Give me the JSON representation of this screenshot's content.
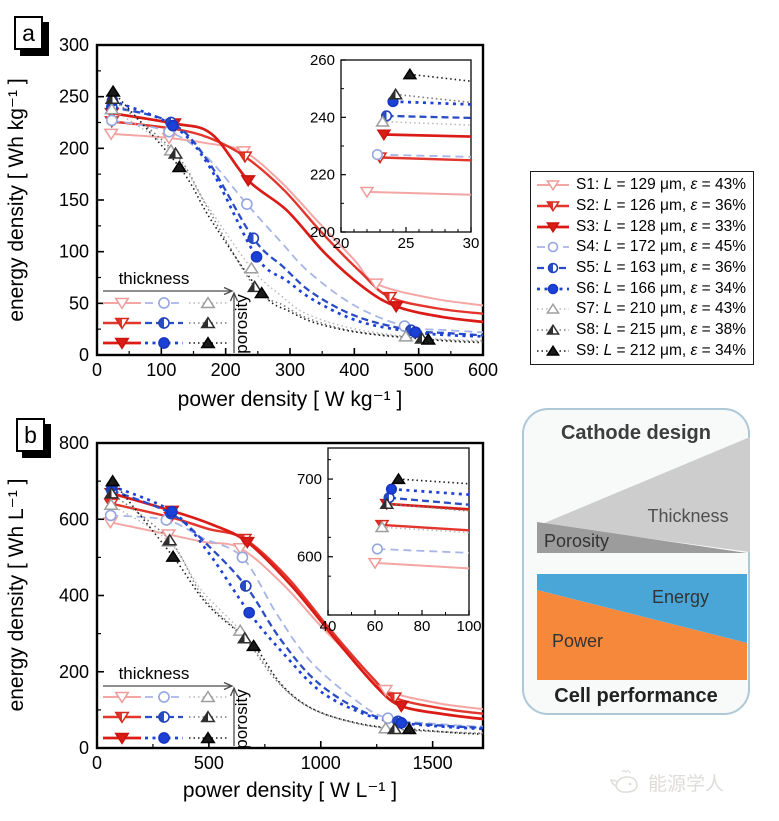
{
  "panels": {
    "a": "a",
    "b": "b"
  },
  "legend": {
    "items": [
      {
        "name": "S1",
        "label": "S1: L = 129 μm, ε = 43%",
        "family": "red",
        "color": "#F4A6A4",
        "mcolor": "#EF9B99",
        "dash": "",
        "width": 2.0,
        "marker": "tri-down",
        "fill": "open"
      },
      {
        "name": "S2",
        "label": "S2: L = 126 μm, ε = 36%",
        "family": "red",
        "color": "#E2352C",
        "mcolor": "#D62920",
        "dash": "",
        "width": 2.4,
        "marker": "tri-down",
        "fill": "half"
      },
      {
        "name": "S3",
        "label": "S3: L = 128 μm, ε = 33%",
        "family": "red",
        "color": "#DB1B15",
        "mcolor": "#C9140F",
        "dash": "",
        "width": 2.7,
        "marker": "tri-down",
        "fill": "full"
      },
      {
        "name": "S4",
        "label": "S4: L = 172 μm, ε = 45%",
        "family": "blue",
        "color": "#A7B5E6",
        "mcolor": "#96A7E0",
        "dash": "8 5",
        "width": 1.8,
        "marker": "circle",
        "fill": "open"
      },
      {
        "name": "S5",
        "label": "S5: L = 163 μm, ε = 36%",
        "family": "blue",
        "color": "#2A4CC6",
        "mcolor": "#2343BC",
        "dash": "7 4",
        "width": 2.3,
        "marker": "circle",
        "fill": "half"
      },
      {
        "name": "S6",
        "label": "S6: L = 166 μm, ε = 34%",
        "family": "blue",
        "color": "#1C41D6",
        "mcolor": "#1636C2",
        "dash": "3 4.5",
        "width": 2.7,
        "marker": "circle",
        "fill": "full"
      },
      {
        "name": "S7",
        "label": "S7: L = 210 μm, ε = 43%",
        "family": "gray",
        "color": "#B9B9B9",
        "mcolor": "#9E9E9E",
        "dash": "1.5 3",
        "width": 1.5,
        "marker": "tri-up",
        "fill": "open"
      },
      {
        "name": "S8",
        "label": "S8: L = 215 μm, ε = 38%",
        "family": "gray",
        "color": "#7A7A7A",
        "mcolor": "#2E2E2E",
        "dash": "1.5 3",
        "width": 1.6,
        "marker": "tri-up",
        "fill": "half"
      },
      {
        "name": "S9",
        "label": "S9: L = 212 μm, ε = 34%",
        "family": "gray",
        "color": "#1A1A1A",
        "mcolor": "#000000",
        "dash": "1.5 3",
        "width": 1.6,
        "marker": "tri-up",
        "fill": "full"
      }
    ]
  },
  "chart_data": [
    {
      "type": "line",
      "title": "",
      "xlabel": "power density [ W kg⁻¹ ]",
      "ylabel": "energy density [ Wh kg⁻¹ ]",
      "xlim": [
        0,
        600
      ],
      "ylim": [
        0,
        300
      ],
      "xticks": [
        0,
        100,
        200,
        300,
        400,
        500,
        600
      ],
      "yticks": [
        0,
        50,
        100,
        150,
        200,
        250,
        300
      ],
      "xminor": 50,
      "yminor": 25,
      "grid": false,
      "annotation": {
        "thickness": "thickness",
        "porosity": "porosity"
      },
      "series": [
        {
          "name": "S1",
          "marker_at": [
            0,
            1,
            3,
            7
          ],
          "x": [
            22,
            112,
            170,
            228,
            285,
            345,
            400,
            434,
            520,
            600
          ],
          "y": [
            214,
            210,
            205,
            197,
            168,
            128,
            92,
            69,
            55,
            48
          ]
        },
        {
          "name": "S2",
          "marker_at": [
            0,
            1,
            3,
            7
          ],
          "x": [
            23,
            118,
            175,
            230,
            290,
            350,
            410,
            455,
            530,
            600
          ],
          "y": [
            226,
            219,
            210,
            192,
            160,
            118,
            80,
            56,
            45,
            40
          ]
        },
        {
          "name": "S3",
          "marker_at": [
            0,
            1,
            3,
            7
          ],
          "x": [
            23,
            120,
            178,
            235,
            295,
            355,
            415,
            465,
            535,
            600
          ],
          "y": [
            234,
            224,
            214,
            169,
            140,
            98,
            65,
            47,
            37,
            32
          ]
        },
        {
          "name": "S4",
          "marker_at": [
            0,
            1,
            3,
            7
          ],
          "x": [
            23,
            112,
            170,
            233,
            285,
            330,
            400,
            478,
            545,
            600
          ],
          "y": [
            227,
            216,
            192,
            146,
            110,
            80,
            48,
            28,
            24,
            22
          ]
        },
        {
          "name": "S5",
          "marker_at": [
            0,
            1,
            3,
            7
          ],
          "x": [
            23,
            115,
            172,
            243,
            290,
            335,
            405,
            488,
            550,
            600
          ],
          "y": [
            240,
            225,
            188,
            113,
            85,
            60,
            37,
            24,
            21,
            19
          ]
        },
        {
          "name": "S6",
          "marker_at": [
            0,
            1,
            3,
            7
          ],
          "x": [
            24,
            118,
            175,
            248,
            295,
            340,
            410,
            495,
            555,
            600
          ],
          "y": [
            246,
            222,
            182,
            95,
            72,
            52,
            32,
            22,
            19,
            18
          ]
        },
        {
          "name": "S7",
          "marker_at": [
            0,
            1,
            3,
            7
          ],
          "x": [
            23,
            115,
            168,
            240,
            285,
            325,
            395,
            480,
            545,
            600
          ],
          "y": [
            238,
            198,
            148,
            84,
            58,
            40,
            26,
            18,
            15,
            14
          ]
        },
        {
          "name": "S8",
          "marker_at": [
            0,
            1,
            3,
            7
          ],
          "x": [
            24,
            122,
            172,
            245,
            290,
            330,
            400,
            505,
            555,
            600
          ],
          "y": [
            248,
            195,
            142,
            66,
            48,
            35,
            23,
            16,
            14,
            13
          ]
        },
        {
          "name": "S9",
          "marker_at": [
            0,
            1,
            3,
            7
          ],
          "x": [
            25,
            128,
            178,
            256,
            300,
            345,
            415,
            515,
            560,
            600
          ],
          "y": [
            255,
            182,
            130,
            60,
            42,
            30,
            21,
            15,
            13,
            12
          ]
        }
      ],
      "inset": {
        "xlim": [
          20,
          30
        ],
        "ylim": [
          200,
          260
        ],
        "xticks": [
          20,
          25,
          30
        ],
        "yticks": [
          200,
          220,
          240,
          260
        ],
        "xminor": 1,
        "yminor": 10,
        "series": [
          {
            "name": "S1",
            "x": [
              22,
              30
            ],
            "y": [
              214,
              213
            ]
          },
          {
            "name": "S2",
            "x": [
              23,
              30
            ],
            "y": [
              226,
              225
            ]
          },
          {
            "name": "S3",
            "x": [
              23.3,
              30
            ],
            "y": [
              234,
              233.3
            ]
          },
          {
            "name": "S4",
            "x": [
              22.8,
              30
            ],
            "y": [
              227,
              226.2
            ]
          },
          {
            "name": "S5",
            "x": [
              23.5,
              30
            ],
            "y": [
              240.5,
              239.8
            ]
          },
          {
            "name": "S6",
            "x": [
              24,
              30
            ],
            "y": [
              245.5,
              244.5
            ]
          },
          {
            "name": "S7",
            "x": [
              23.2,
              30
            ],
            "y": [
              238.5,
              237.3
            ]
          },
          {
            "name": "S8",
            "x": [
              24.2,
              30
            ],
            "y": [
              248,
              245.2
            ]
          },
          {
            "name": "S9",
            "x": [
              25.3,
              30
            ],
            "y": [
              255,
              252.6
            ]
          }
        ]
      }
    },
    {
      "type": "line",
      "title": "",
      "xlabel": "power density [ W L⁻¹ ]",
      "ylabel": "energy density [ Wh L⁻¹ ]",
      "xlim": [
        0,
        1725
      ],
      "ylim": [
        0,
        800
      ],
      "xticks": [
        0,
        500,
        1000,
        1500
      ],
      "yticks": [
        0,
        200,
        400,
        600,
        800
      ],
      "xminor": 250,
      "yminor": 100,
      "grid": false,
      "annotation": {
        "thickness": "thickness",
        "porosity": "porosity"
      },
      "series": [
        {
          "name": "S1",
          "marker_at": [
            0,
            1,
            3,
            7
          ],
          "x": [
            60,
            320,
            480,
            640,
            830,
            1000,
            1180,
            1290,
            1520,
            1725
          ],
          "y": [
            592,
            560,
            540,
            524,
            430,
            320,
            215,
            152,
            118,
            102
          ]
        },
        {
          "name": "S2",
          "marker_at": [
            0,
            1,
            3,
            7
          ],
          "x": [
            63,
            330,
            495,
            660,
            850,
            1050,
            1230,
            1330,
            1550,
            1725
          ],
          "y": [
            641,
            605,
            575,
            548,
            448,
            305,
            185,
            132,
            103,
            90
          ]
        },
        {
          "name": "S3",
          "marker_at": [
            0,
            1,
            3,
            7
          ],
          "x": [
            65,
            335,
            505,
            672,
            870,
            1080,
            1250,
            1360,
            1560,
            1725
          ],
          "y": [
            668,
            622,
            588,
            540,
            425,
            275,
            160,
            110,
            88,
            76
          ]
        },
        {
          "name": "S4",
          "marker_at": [
            0,
            1,
            3,
            7
          ],
          "x": [
            61,
            310,
            475,
            650,
            800,
            950,
            1150,
            1300,
            1550,
            1725
          ],
          "y": [
            610,
            598,
            550,
            500,
            355,
            230,
            128,
            78,
            62,
            56
          ]
        },
        {
          "name": "S5",
          "marker_at": [
            0,
            1,
            3,
            7
          ],
          "x": [
            66,
            330,
            490,
            665,
            820,
            980,
            1180,
            1345,
            1560,
            1725
          ],
          "y": [
            676,
            615,
            535,
            425,
            285,
            175,
            98,
            70,
            58,
            53
          ]
        },
        {
          "name": "S6",
          "marker_at": [
            0,
            1,
            3,
            7
          ],
          "x": [
            67,
            335,
            495,
            680,
            830,
            1000,
            1200,
            1360,
            1570,
            1725
          ],
          "y": [
            687,
            620,
            515,
            355,
            250,
            148,
            88,
            66,
            55,
            50
          ]
        },
        {
          "name": "S7",
          "marker_at": [
            0,
            1,
            3,
            7
          ],
          "x": [
            63,
            320,
            465,
            640,
            780,
            920,
            1100,
            1290,
            1500,
            1725
          ],
          "y": [
            638,
            542,
            415,
            308,
            198,
            118,
            74,
            52,
            44,
            40
          ]
        },
        {
          "name": "S8",
          "marker_at": [
            0,
            1,
            3,
            7
          ],
          "x": [
            65,
            325,
            475,
            660,
            800,
            950,
            1150,
            1330,
            1550,
            1725
          ],
          "y": [
            668,
            545,
            395,
            288,
            178,
            106,
            66,
            50,
            42,
            38
          ]
        },
        {
          "name": "S9",
          "marker_at": [
            0,
            1,
            3,
            7
          ],
          "x": [
            70,
            340,
            495,
            700,
            830,
            980,
            1200,
            1395,
            1600,
            1725
          ],
          "y": [
            700,
            502,
            375,
            268,
            162,
            98,
            61,
            50,
            40,
            36
          ]
        }
      ],
      "inset": {
        "xlim": [
          40,
          100
        ],
        "ylim": [
          525,
          740
        ],
        "xticks": [
          40,
          60,
          80,
          100
        ],
        "yticks": [
          600,
          700
        ],
        "xminor": 10,
        "yminor": 50,
        "series": [
          {
            "name": "S1",
            "x": [
              60,
              100
            ],
            "y": [
              592,
              585
            ]
          },
          {
            "name": "S2",
            "x": [
              63,
              100
            ],
            "y": [
              641,
              634
            ]
          },
          {
            "name": "S3",
            "x": [
              65,
              100
            ],
            "y": [
              668,
              661
            ]
          },
          {
            "name": "S4",
            "x": [
              61,
              100
            ],
            "y": [
              610,
              605
            ]
          },
          {
            "name": "S5",
            "x": [
              66,
              100
            ],
            "y": [
              676,
              667
            ]
          },
          {
            "name": "S6",
            "x": [
              67,
              100
            ],
            "y": [
              687,
              680
            ]
          },
          {
            "name": "S7",
            "x": [
              63,
              100
            ],
            "y": [
              638,
              631
            ]
          },
          {
            "name": "S8",
            "x": [
              65,
              100
            ],
            "y": [
              668,
              659
            ]
          },
          {
            "name": "S9",
            "x": [
              70,
              100
            ],
            "y": [
              700,
              694
            ]
          }
        ]
      }
    }
  ],
  "diagram": {
    "title": "Cathode design",
    "bottom_title": "Cell performance",
    "thickness_label": "Thickness",
    "porosity_label": "Porosity",
    "energy_label": "Energy",
    "power_label": "Power",
    "colors": {
      "thickness": "#CDCDCD",
      "porosity": "#9C9C9C",
      "energy": "#4BA6D8",
      "power": "#F5883B",
      "border": "#AEC8D8"
    }
  },
  "watermark": {
    "text": "能源学人"
  }
}
